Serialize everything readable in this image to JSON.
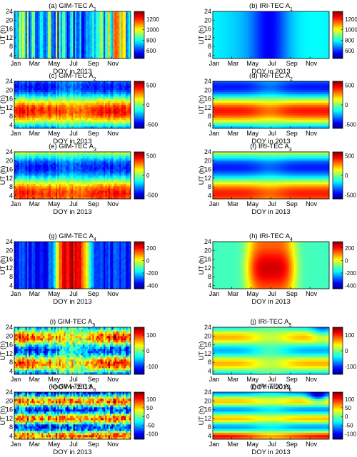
{
  "chart_data": {
    "type": "heatmap",
    "colormap": "jet",
    "x_axis": {
      "label": "DOY in 2013",
      "ticks": [
        "Jan",
        "Mar",
        "May",
        "Jul",
        "Sep",
        "Nov"
      ],
      "tick_days": [
        1,
        60,
        121,
        182,
        244,
        305
      ],
      "range": [
        1,
        365
      ]
    },
    "y_axis": {
      "label": "UT (h)",
      "ticks": [
        "4",
        "8",
        "12",
        "16",
        "20",
        "24"
      ],
      "tick_values": [
        4,
        8,
        12,
        16,
        20,
        24
      ],
      "range": [
        2.5,
        24
      ]
    },
    "panels": [
      {
        "id": "gim-a1",
        "title_main": "(a) GIM-TEC A",
        "title_sub": "1",
        "source": "GIM",
        "kind": "A1",
        "clim": [
          450,
          1350
        ],
        "colorbar_ticks": [
          "1200",
          "1000",
          "800",
          "600"
        ],
        "colorbar_values": [
          1200,
          1000,
          800,
          600
        ]
      },
      {
        "id": "iri-a1",
        "title_main": "(b) IRI-TEC A",
        "title_sub": "1",
        "source": "IRI",
        "kind": "A1",
        "clim": [
          450,
          1350
        ],
        "colorbar_ticks": [
          "1200",
          "1000",
          "800",
          "600"
        ],
        "colorbar_values": [
          1200,
          1000,
          800,
          600
        ]
      },
      {
        "id": "gim-a2",
        "title_main": "(c) GIM-TEC A",
        "title_sub": "2",
        "source": "GIM",
        "kind": "A2",
        "clim": [
          -600,
          600
        ],
        "colorbar_ticks": [
          "500",
          "0",
          "-500"
        ],
        "colorbar_values": [
          500,
          0,
          -500
        ]
      },
      {
        "id": "iri-a2",
        "title_main": "(d) IRI-TEC A",
        "title_sub": "2",
        "source": "IRI",
        "kind": "A2",
        "clim": [
          -600,
          600
        ],
        "colorbar_ticks": [
          "500",
          "0",
          "-500"
        ],
        "colorbar_values": [
          500,
          0,
          -500
        ]
      },
      {
        "id": "gim-a3",
        "title_main": "(e) GIM-TEC A",
        "title_sub": "3",
        "source": "GIM",
        "kind": "A3",
        "clim": [
          -600,
          600
        ],
        "colorbar_ticks": [
          "500",
          "0",
          "-500"
        ],
        "colorbar_values": [
          500,
          0,
          -500
        ]
      },
      {
        "id": "iri-a3",
        "title_main": "(f) IRI-TEC A",
        "title_sub": "3",
        "source": "IRI",
        "kind": "A3",
        "clim": [
          -600,
          600
        ],
        "colorbar_ticks": [
          "500",
          "0",
          "-500"
        ],
        "colorbar_values": [
          500,
          0,
          -500
        ]
      },
      {
        "id": "gim-a4",
        "title_main": "(g) GIM-TEC A",
        "title_sub": "4",
        "source": "GIM",
        "kind": "A4",
        "clim": [
          -450,
          300
        ],
        "colorbar_ticks": [
          "200",
          "0",
          "-200",
          "-400"
        ],
        "colorbar_values": [
          200,
          0,
          -200,
          -400
        ]
      },
      {
        "id": "iri-a4",
        "title_main": "(h) IRI-TEC A",
        "title_sub": "4",
        "source": "IRI",
        "kind": "A4",
        "clim": [
          -450,
          300
        ],
        "colorbar_ticks": [
          "200",
          "0",
          "-200",
          "-400"
        ],
        "colorbar_values": [
          200,
          0,
          -200,
          -400
        ]
      },
      {
        "id": "gim-a5",
        "title_main": "(i) GIM-TEC A",
        "title_sub": "5",
        "source": "GIM",
        "kind": "A5",
        "clim": [
          -150,
          150
        ],
        "colorbar_ticks": [
          "100",
          "0",
          "-100"
        ],
        "colorbar_values": [
          100,
          0,
          -100
        ]
      },
      {
        "id": "iri-a5",
        "title_main": "(j) IRI-TEC A",
        "title_sub": "5",
        "source": "IRI",
        "kind": "A5",
        "clim": [
          -150,
          150
        ],
        "colorbar_ticks": [
          "100",
          "0",
          "-100"
        ],
        "colorbar_values": [
          100,
          0,
          -100
        ]
      },
      {
        "id": "gim-a6",
        "title_main": "(k) GIM-TEC A",
        "title_sub": "6",
        "source": "GIM",
        "kind": "A6",
        "clim": [
          -130,
          140
        ],
        "colorbar_ticks": [
          "100",
          "50",
          "0",
          "-50",
          "-100"
        ],
        "colorbar_values": [
          100,
          50,
          0,
          -50,
          -100
        ]
      },
      {
        "id": "iri-a6",
        "title_main": "(l) IRI-TEC A",
        "title_sub": "6",
        "source": "IRI",
        "kind": "A6",
        "clim": [
          -130,
          140
        ],
        "colorbar_ticks": [
          "100",
          "50",
          "0",
          "-50",
          "-100"
        ],
        "colorbar_values": [
          100,
          50,
          0,
          -50,
          -100
        ]
      }
    ]
  }
}
